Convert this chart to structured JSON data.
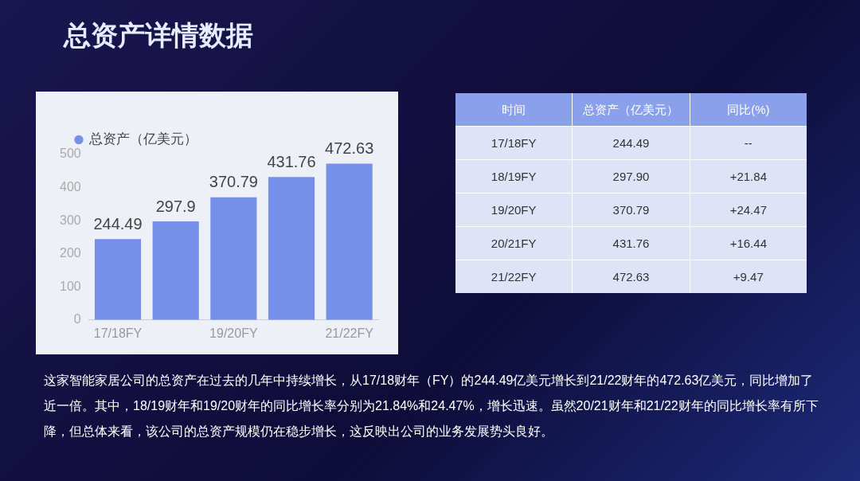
{
  "chart_data": [
    {
      "type": "bar",
      "title": "总资产详情数据",
      "categories": [
        "17/18FY",
        null,
        "19/20FY",
        null,
        "21/22FY"
      ],
      "series": [
        {
          "name": "总资产（亿美元）",
          "color": "#7690ea",
          "values": [
            244.49,
            297.9,
            370.79,
            431.76,
            472.63
          ]
        }
      ],
      "ylim": [
        0,
        500
      ],
      "yticks": [
        0,
        100,
        200,
        300,
        400,
        500
      ],
      "grid": false,
      "legend": "top left",
      "data_labels": true,
      "annotations": [
        "这家智能家居公司的总资产在过去的几年中持续增长，从17/18财年（FY）的244.49亿美元增长到21/22财年的472.63亿美元，同比增加了近一倍。其中，18/19财年和19/20财年的同比增长率分别为21.84%和24.47%，增长迅速。虽然20/21财年和21/22财年的同比增长率有所下降，但总体来看，该公司的总资产规模仍在稳步增长，这反映出公司的业务发展势头良好。"
      ]
    },
    {
      "type": "other",
      "xlabel": "时间",
      "categories": [
        "17/18FY",
        "18/19FY",
        "19/20FY",
        "20/21FY",
        "21/22FY"
      ],
      "series": [
        {
          "name": "总资产（亿美元）",
          "values": [
            244.49,
            297.9,
            370.79,
            431.76,
            472.63
          ],
          "value_labels": [
            "244.49",
            "297.90",
            "370.79",
            "431.76",
            "472.63"
          ]
        },
        {
          "name": "同比(%)",
          "values": [
            null,
            21.84,
            24.47,
            16.44,
            9.47
          ],
          "value_labels": [
            "--",
            "+21.84",
            "+24.47",
            "+16.44",
            "+9.47"
          ]
        }
      ]
    }
  ]
}
